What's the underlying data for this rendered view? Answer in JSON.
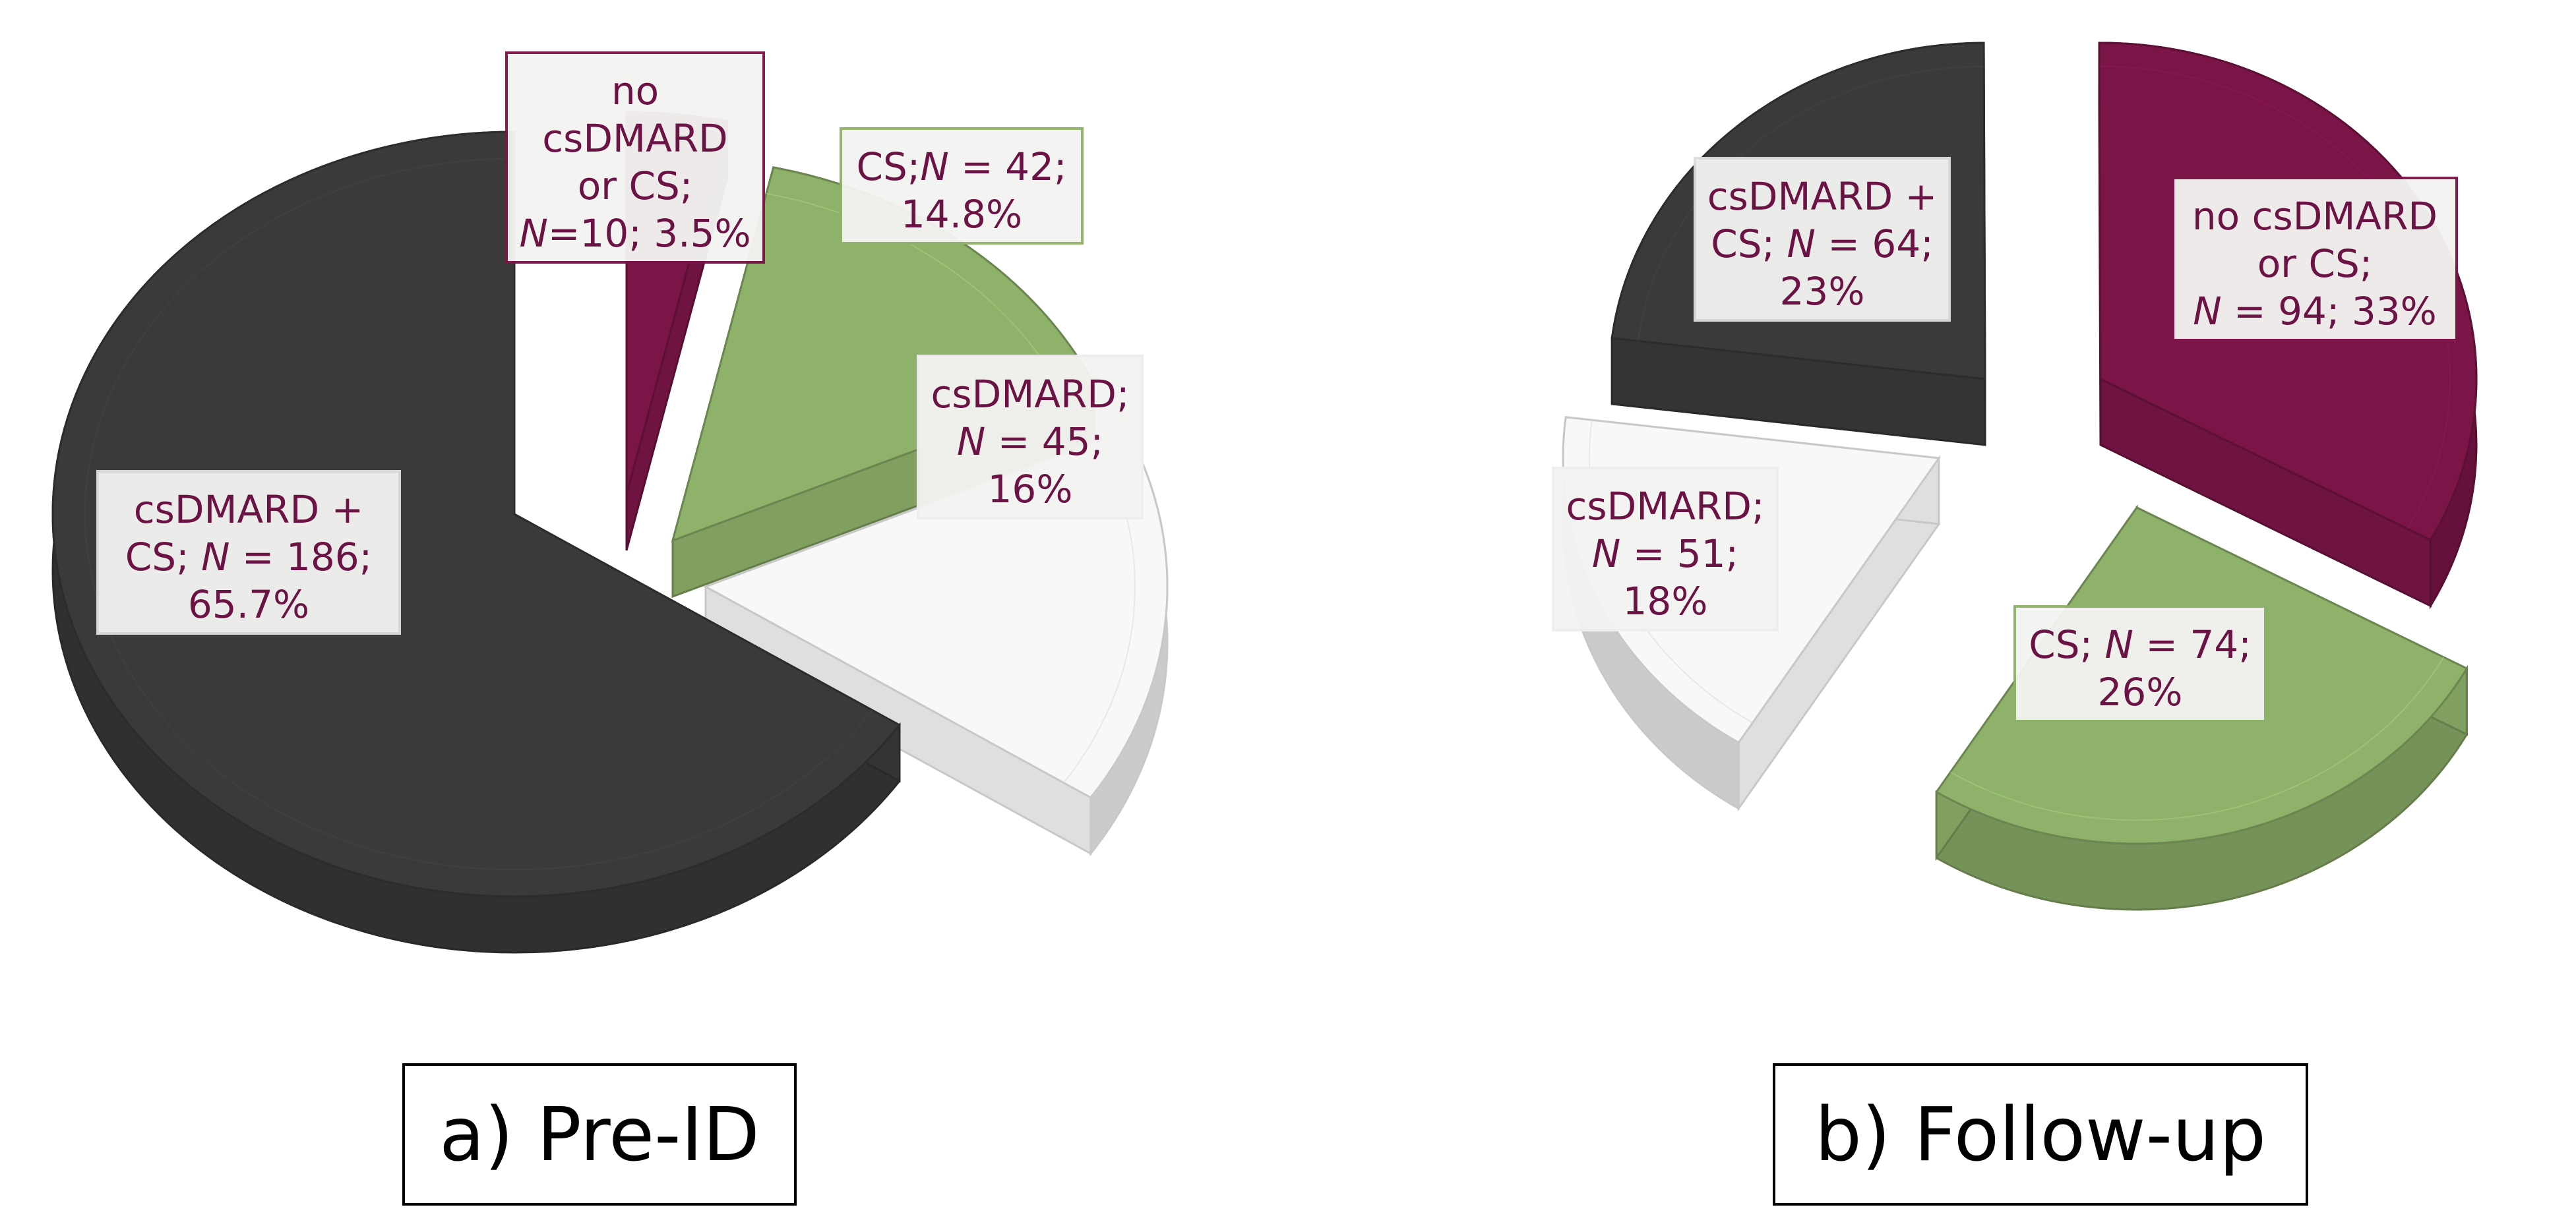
{
  "colors": {
    "label_text": "#6b1344",
    "dark": "#3a3a3a",
    "green": "#8fb26b",
    "white": "#f8f8f8",
    "maroon": "#7b1548"
  },
  "chart_data": [
    {
      "type": "pie",
      "caption": "a) Pre-ID",
      "slices": [
        {
          "name": "csDMARD + CS",
          "n": 186,
          "percent": 65.7,
          "color_key": "dark",
          "label_lines": [
            "csDMARD +",
            "CS; N = 186;",
            "65.7%"
          ]
        },
        {
          "name": "no csDMARD or CS",
          "n": 10,
          "percent": 3.5,
          "color_key": "maroon",
          "label_lines": [
            "no",
            "csDMARD",
            "or CS;",
            "N=10; 3.5%"
          ]
        },
        {
          "name": "CS",
          "n": 42,
          "percent": 14.8,
          "color_key": "green",
          "label_lines": [
            "CS;N = 42;",
            "14.8%"
          ]
        },
        {
          "name": "csDMARD",
          "n": 45,
          "percent": 16,
          "color_key": "white",
          "label_lines": [
            "csDMARD;",
            "N = 45;",
            "16%"
          ]
        }
      ]
    },
    {
      "type": "pie",
      "caption": "b) Follow-up",
      "slices": [
        {
          "name": "csDMARD + CS",
          "n": 64,
          "percent": 23,
          "color_key": "dark",
          "label_lines": [
            "csDMARD +",
            "CS; N = 64;",
            "23%"
          ]
        },
        {
          "name": "no csDMARD or CS",
          "n": 94,
          "percent": 33,
          "color_key": "maroon",
          "label_lines": [
            "no csDMARD",
            "or CS;",
            "N = 94; 33%"
          ]
        },
        {
          "name": "CS",
          "n": 74,
          "percent": 26,
          "color_key": "green",
          "label_lines": [
            "CS; N = 74;",
            "26%"
          ]
        },
        {
          "name": "csDMARD",
          "n": 51,
          "percent": 18,
          "color_key": "white",
          "label_lines": [
            "csDMARD;",
            "N = 51;",
            "18%"
          ]
        }
      ]
    }
  ]
}
